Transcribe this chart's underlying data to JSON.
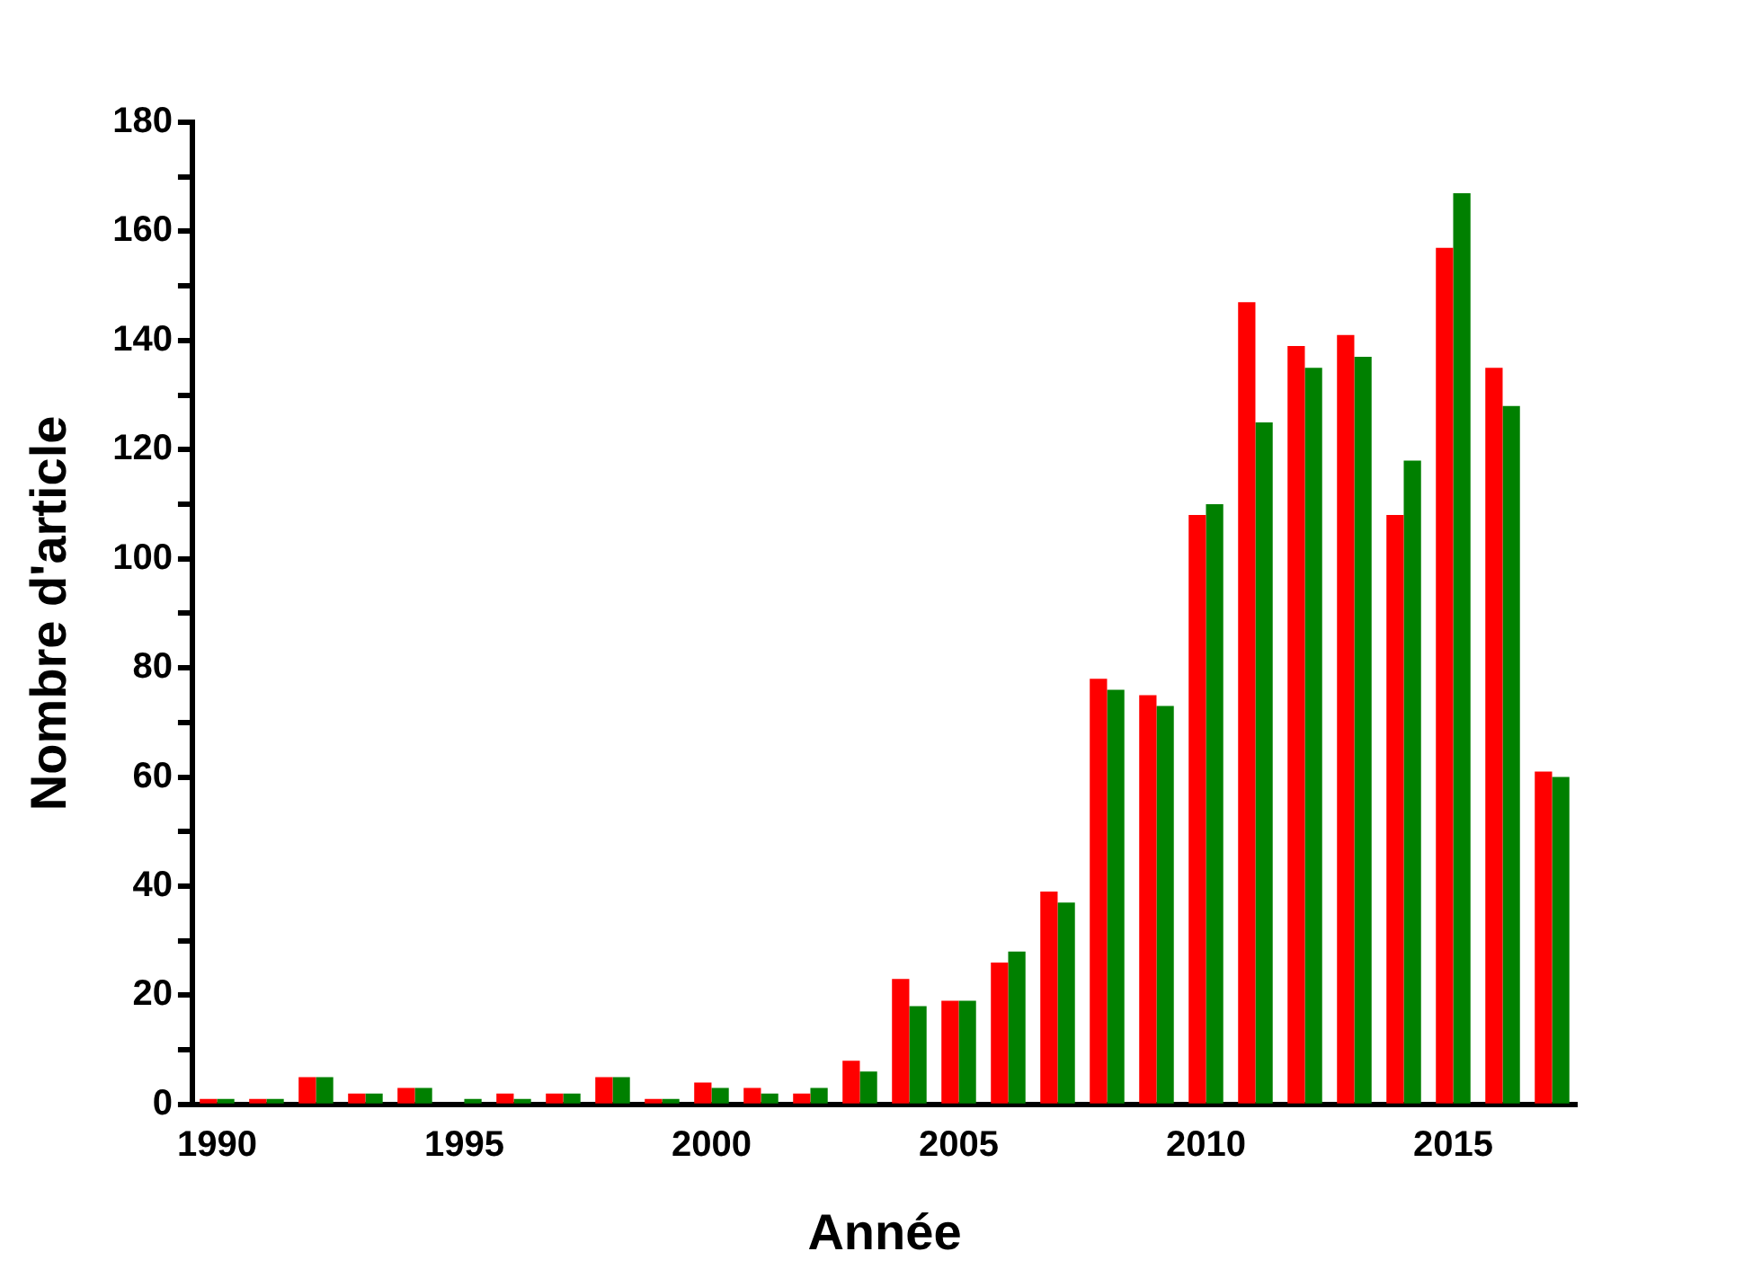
{
  "chart_data": {
    "type": "bar",
    "xlabel": "Année",
    "ylabel": "Nombre d'article",
    "categories": [
      "1990",
      null,
      null,
      null,
      null,
      "1995",
      null,
      null,
      null,
      null,
      "2000",
      null,
      null,
      null,
      null,
      "2005",
      null,
      null,
      null,
      null,
      "2010",
      null,
      null,
      null,
      null,
      "2015",
      null,
      null
    ],
    "series": [
      {
        "color": "#ff0000",
        "values": [
          1,
          1,
          5,
          2,
          3,
          0,
          2,
          2,
          5,
          1,
          4,
          3,
          2,
          8,
          23,
          19,
          26,
          39,
          78,
          75,
          108,
          147,
          139,
          141,
          108,
          157,
          135,
          61
        ]
      },
      {
        "color": "#008000",
        "values": [
          1,
          1,
          5,
          2,
          3,
          1,
          1,
          2,
          5,
          1,
          3,
          2,
          3,
          6,
          18,
          19,
          28,
          37,
          76,
          73,
          110,
          125,
          135,
          137,
          118,
          167,
          128,
          60
        ]
      }
    ],
    "ylim": [
      0,
      180
    ],
    "yticks": [
      0,
      {
        "value": 10,
        "label": null
      },
      20,
      {
        "value": 30,
        "label": null
      },
      40,
      {
        "value": 50,
        "label": null
      },
      60,
      {
        "value": 70,
        "label": null
      },
      80,
      {
        "value": 90,
        "label": null
      },
      100,
      {
        "value": 110,
        "label": null
      },
      120,
      {
        "value": 130,
        "label": null
      },
      140,
      {
        "value": 150,
        "label": null
      },
      160,
      {
        "value": 170,
        "label": null
      },
      180
    ],
    "grid": false,
    "legend": false
  }
}
